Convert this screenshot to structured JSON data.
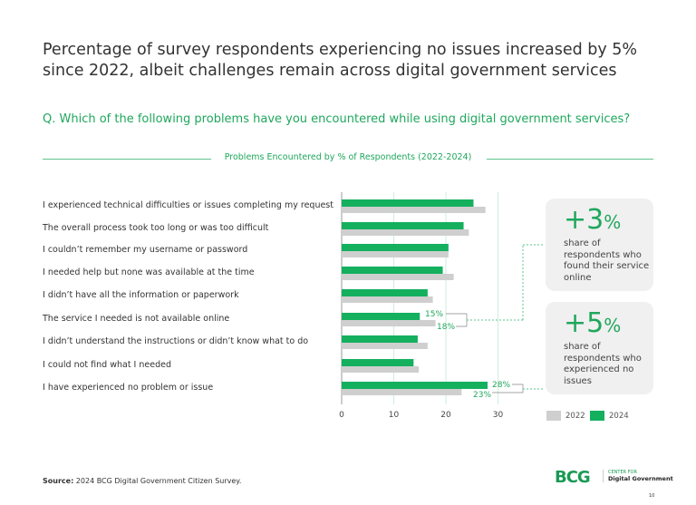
{
  "title": "Percentage of survey respondents experiencing no issues increased by 5% since 2022, albeit challenges remain across digital government services",
  "question": "Q. Which of the following problems have you encountered while using digital government services?",
  "chart_data": {
    "type": "bar",
    "orientation": "horizontal",
    "title": "Problems Encountered by % of Respondents (2022-2024)",
    "categories": [
      "I experienced technical difficulties or issues completing my request",
      "The overall process took too long or was too difficult",
      "I couldn’t remember my username or password",
      "I needed help but none was available at the time",
      "I didn’t have all the information or paperwork",
      "The service I needed is not available online",
      "I didn’t understand the instructions or didn’t know what to do",
      "I could not find what I needed",
      "I have experienced no problem or issue"
    ],
    "series": [
      {
        "name": "2022",
        "color": "#cfcfcf",
        "values": [
          27.6,
          24.4,
          20.5,
          21.5,
          17.5,
          18,
          16.5,
          14.8,
          23
        ]
      },
      {
        "name": "2024",
        "color": "#14b05e",
        "values": [
          25.3,
          23.4,
          20.5,
          19.4,
          16.5,
          15,
          14.6,
          13.8,
          28
        ]
      }
    ],
    "xlim": [
      0,
      30
    ],
    "xticks": [
      "0",
      "10",
      "20",
      "30"
    ],
    "grid": true,
    "annotations": [
      {
        "category_index": 5,
        "label_2024": "15%",
        "label_2022": "18%"
      },
      {
        "category_index": 8,
        "label_2024": "28%",
        "label_2022": "23%"
      }
    ],
    "legend_position": "bottom-right"
  },
  "callouts": [
    {
      "value": "+3",
      "unit": "%",
      "text": "share of respondents who found their service online"
    },
    {
      "value": "+5",
      "unit": "%",
      "text": "share of respondents who experienced no issues"
    }
  ],
  "source_label": "Source:",
  "source_text": " 2024 BCG Digital Government Citizen Survey.",
  "logo": {
    "brand": "BCG",
    "center_for": "CENTER FOR",
    "name": "Digital Government"
  },
  "page_number": "10"
}
